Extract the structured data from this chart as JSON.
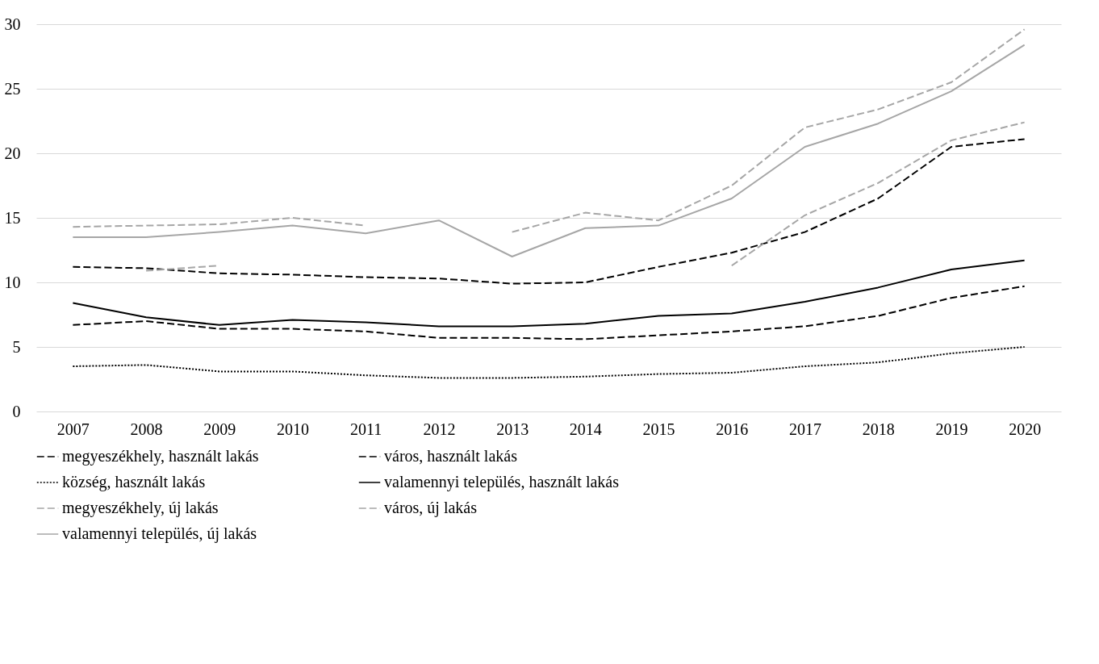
{
  "chart_data": {
    "type": "line",
    "categories": [
      "2007",
      "2008",
      "2009",
      "2010",
      "2011",
      "2012",
      "2013",
      "2014",
      "2015",
      "2016",
      "2017",
      "2018",
      "2019",
      "2020"
    ],
    "series": [
      {
        "name": "megyeszékhely, használt lakás",
        "color": "#000000",
        "line_style": "dashed",
        "values": [
          11.2,
          11.1,
          10.7,
          10.6,
          10.4,
          10.3,
          9.9,
          10.0,
          11.2,
          12.3,
          13.9,
          16.5,
          20.5,
          21.1
        ]
      },
      {
        "name": "város, használt lakás",
        "color": "#000000",
        "line_style": "dashed",
        "values": [
          6.7,
          7.0,
          6.4,
          6.4,
          6.2,
          5.7,
          5.7,
          5.6,
          5.9,
          6.2,
          6.6,
          7.4,
          8.8,
          9.7
        ]
      },
      {
        "name": "község, használt lakás",
        "color": "#000000",
        "line_style": "dotted",
        "values": [
          3.5,
          3.6,
          3.1,
          3.1,
          2.8,
          2.6,
          2.6,
          2.7,
          2.9,
          3.0,
          3.5,
          3.8,
          4.5,
          5.0
        ]
      },
      {
        "name": "valamennyi település, használt lakás",
        "color": "#000000",
        "line_style": "solid",
        "values": [
          8.4,
          7.3,
          6.7,
          7.1,
          6.9,
          6.6,
          6.6,
          6.8,
          7.4,
          7.6,
          8.5,
          9.6,
          11.0,
          11.7
        ]
      },
      {
        "name": "megyeszékhely, új lakás",
        "color": "#a6a6a6",
        "line_style": "dashed",
        "values": [
          14.3,
          14.4,
          14.5,
          15.0,
          14.4,
          null,
          13.9,
          15.4,
          14.8,
          17.5,
          22.0,
          23.4,
          25.5,
          29.6
        ]
      },
      {
        "name": "város, új lakás",
        "color": "#a6a6a6",
        "line_style": "dashed",
        "values": [
          null,
          10.9,
          11.3,
          null,
          null,
          null,
          null,
          null,
          null,
          11.3,
          15.2,
          17.7,
          21.0,
          22.4
        ]
      },
      {
        "name": "valamennyi település, új lakás",
        "color": "#a6a6a6",
        "line_style": "solid",
        "values": [
          13.5,
          13.5,
          13.9,
          14.4,
          13.8,
          14.8,
          12.0,
          14.2,
          14.4,
          16.5,
          20.5,
          22.3,
          24.8,
          28.4
        ]
      }
    ],
    "ylim": [
      0,
      30
    ],
    "yticks": [
      0,
      5,
      10,
      15,
      20,
      25,
      30
    ],
    "grid": "y",
    "legend": "bottom"
  }
}
